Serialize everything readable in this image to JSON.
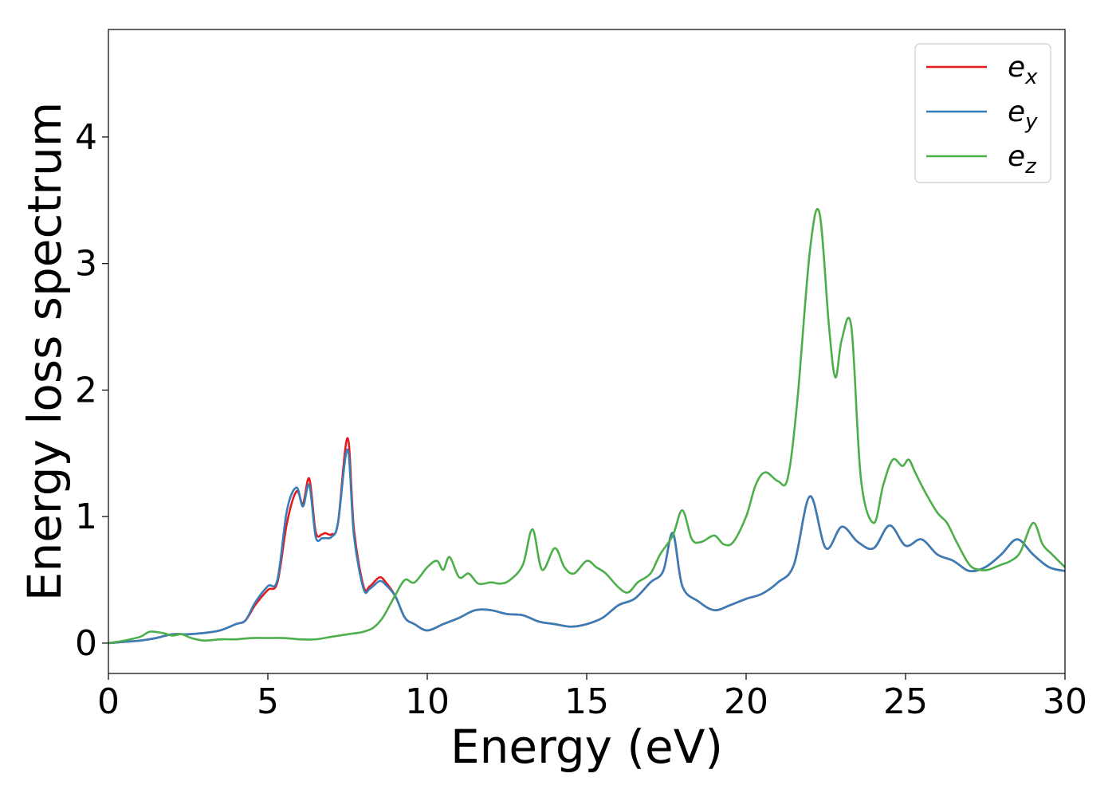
{
  "chart_data": {
    "type": "line",
    "xlabel": "Energy (eV)",
    "ylabel": "Energy loss spectrum",
    "xlim": [
      0,
      30
    ],
    "ylim": [
      -0.24,
      4.85
    ],
    "xticks": [
      "0",
      "5",
      "10",
      "15",
      "20",
      "25",
      "30"
    ],
    "yticks": [
      "0",
      "1",
      "2",
      "3",
      "4"
    ],
    "grid": false,
    "legend_position": "top-right",
    "series": [
      {
        "name": "e",
        "sub": "x",
        "color": "#e41a1c",
        "x": [
          0,
          0.5,
          1,
          1.5,
          2,
          2.5,
          3,
          3.5,
          4,
          4.3,
          4.6,
          5,
          5.3,
          5.6,
          5.9,
          6.1,
          6.3,
          6.5,
          6.7,
          6.8,
          7,
          7.2,
          7.5,
          7.7,
          8,
          8.2,
          8.5,
          8.7,
          9,
          9.3,
          9.6,
          10,
          10.5,
          11,
          11.5,
          12,
          12.5,
          13,
          13.5,
          14,
          14.5,
          15,
          15.5,
          16,
          16.5,
          17,
          17.4,
          17.7,
          18,
          18.5,
          19,
          19.5,
          20,
          20.5,
          21,
          21.5,
          22,
          22.5,
          23,
          23.5,
          24,
          24.5,
          25,
          25.5,
          26,
          26.5,
          27,
          27.5,
          28,
          28.5,
          29,
          29.5,
          30
        ],
        "y": [
          0,
          0.01,
          0.02,
          0.04,
          0.07,
          0.07,
          0.08,
          0.1,
          0.15,
          0.18,
          0.3,
          0.42,
          0.48,
          0.95,
          1.2,
          1.1,
          1.3,
          0.88,
          0.86,
          0.87,
          0.86,
          0.95,
          1.62,
          0.9,
          0.45,
          0.45,
          0.52,
          0.48,
          0.37,
          0.2,
          0.15,
          0.1,
          0.15,
          0.2,
          0.26,
          0.26,
          0.23,
          0.22,
          0.17,
          0.15,
          0.13,
          0.15,
          0.2,
          0.3,
          0.35,
          0.48,
          0.57,
          0.87,
          0.45,
          0.33,
          0.26,
          0.3,
          0.35,
          0.39,
          0.48,
          0.62,
          1.16,
          0.75,
          0.92,
          0.8,
          0.75,
          0.93,
          0.77,
          0.82,
          0.7,
          0.65,
          0.57,
          0.6,
          0.7,
          0.82,
          0.7,
          0.6,
          0.57
        ]
      },
      {
        "name": "e",
        "sub": "y",
        "color": "#377eb8",
        "x": [
          0,
          0.5,
          1,
          1.5,
          2,
          2.5,
          3,
          3.5,
          4,
          4.3,
          4.6,
          5,
          5.3,
          5.6,
          5.9,
          6.1,
          6.3,
          6.5,
          6.7,
          6.8,
          7,
          7.2,
          7.5,
          7.7,
          8,
          8.2,
          8.5,
          8.7,
          9,
          9.3,
          9.6,
          10,
          10.5,
          11,
          11.5,
          12,
          12.5,
          13,
          13.5,
          14,
          14.5,
          15,
          15.5,
          16,
          16.5,
          17,
          17.4,
          17.7,
          18,
          18.5,
          19,
          19.5,
          20,
          20.5,
          21,
          21.5,
          22,
          22.5,
          23,
          23.5,
          24,
          24.5,
          25,
          25.5,
          26,
          26.5,
          27,
          27.5,
          28,
          28.5,
          29,
          29.5,
          30
        ],
        "y": [
          0,
          0.01,
          0.02,
          0.04,
          0.07,
          0.07,
          0.08,
          0.1,
          0.15,
          0.18,
          0.32,
          0.45,
          0.5,
          1.05,
          1.23,
          1.08,
          1.25,
          0.84,
          0.83,
          0.83,
          0.84,
          0.95,
          1.53,
          0.85,
          0.43,
          0.43,
          0.49,
          0.46,
          0.37,
          0.2,
          0.15,
          0.1,
          0.15,
          0.2,
          0.26,
          0.26,
          0.23,
          0.22,
          0.17,
          0.15,
          0.13,
          0.15,
          0.2,
          0.3,
          0.35,
          0.48,
          0.57,
          0.87,
          0.45,
          0.33,
          0.26,
          0.3,
          0.35,
          0.39,
          0.48,
          0.62,
          1.16,
          0.75,
          0.92,
          0.8,
          0.75,
          0.93,
          0.77,
          0.82,
          0.7,
          0.65,
          0.57,
          0.6,
          0.7,
          0.82,
          0.7,
          0.6,
          0.57
        ]
      },
      {
        "name": "e",
        "sub": "z",
        "color": "#4daf4a",
        "x": [
          0,
          0.5,
          1,
          1.3,
          1.7,
          2,
          2.3,
          2.6,
          3,
          3.5,
          4,
          4.5,
          5,
          5.5,
          6,
          6.5,
          7,
          7.5,
          7.8,
          8,
          8.3,
          8.6,
          9,
          9.3,
          9.6,
          10,
          10.3,
          10.5,
          10.7,
          11,
          11.3,
          11.6,
          12,
          12.3,
          12.6,
          13,
          13.3,
          13.6,
          14,
          14.3,
          14.6,
          15,
          15.3,
          15.6,
          16,
          16.3,
          16.6,
          17,
          17.3,
          17.7,
          18,
          18.3,
          18.6,
          19,
          19.3,
          19.6,
          20,
          20.3,
          20.6,
          21,
          21.3,
          21.6,
          22,
          22.3,
          22.6,
          22.8,
          23,
          23.3,
          23.6,
          24,
          24.3,
          24.6,
          24.9,
          25.1,
          25.3,
          25.6,
          26,
          26.3,
          26.6,
          27,
          27.3,
          27.6,
          28,
          28.3,
          28.6,
          29,
          29.3,
          29.6,
          30
        ],
        "y": [
          0,
          0.02,
          0.05,
          0.09,
          0.08,
          0.06,
          0.07,
          0.04,
          0.02,
          0.03,
          0.03,
          0.04,
          0.04,
          0.04,
          0.03,
          0.03,
          0.05,
          0.07,
          0.08,
          0.09,
          0.12,
          0.2,
          0.38,
          0.5,
          0.48,
          0.6,
          0.65,
          0.58,
          0.68,
          0.52,
          0.55,
          0.47,
          0.48,
          0.47,
          0.5,
          0.62,
          0.9,
          0.58,
          0.75,
          0.6,
          0.55,
          0.65,
          0.6,
          0.55,
          0.44,
          0.4,
          0.48,
          0.55,
          0.7,
          0.85,
          1.05,
          0.82,
          0.8,
          0.85,
          0.78,
          0.8,
          1.0,
          1.25,
          1.35,
          1.28,
          1.3,
          1.9,
          3.1,
          3.4,
          2.5,
          2.1,
          2.4,
          2.5,
          1.3,
          0.95,
          1.25,
          1.45,
          1.4,
          1.45,
          1.35,
          1.2,
          1.03,
          0.95,
          0.8,
          0.62,
          0.58,
          0.58,
          0.62,
          0.65,
          0.72,
          0.95,
          0.78,
          0.7,
          0.6
        ]
      }
    ]
  }
}
